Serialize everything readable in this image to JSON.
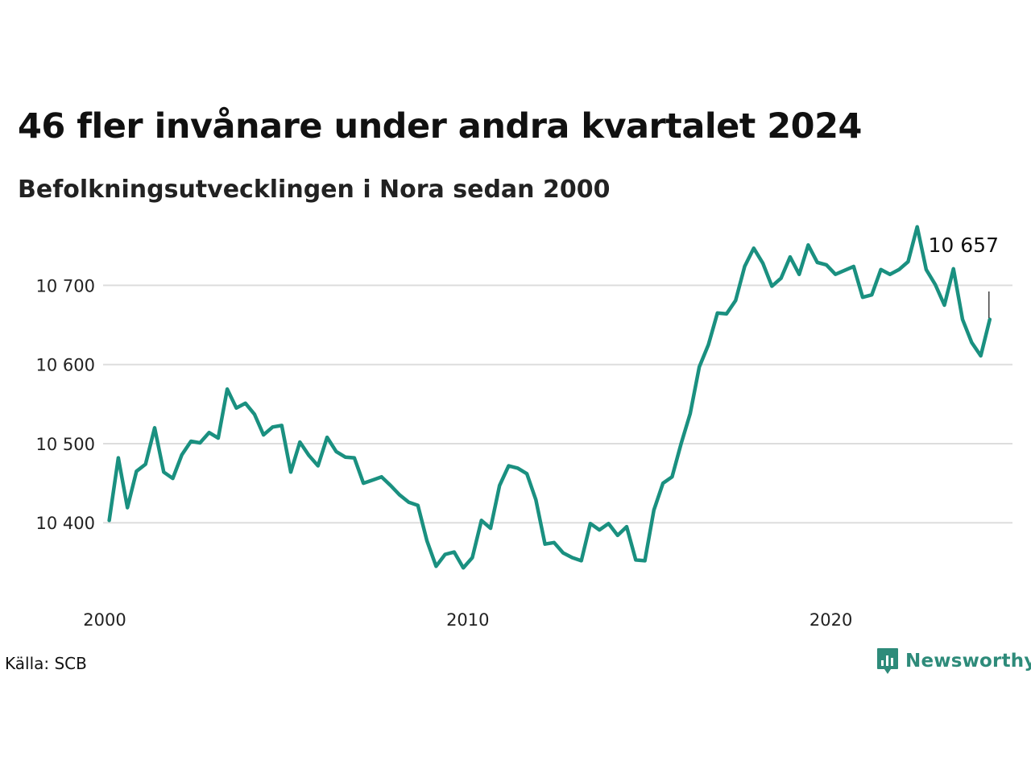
{
  "title": "46 fler invånare under andra kvartalet 2024",
  "subtitle": "Befolkningsutvecklingen i Nora sedan 2000",
  "source": "Källa: SCB",
  "brand": {
    "name": "Newsworthy",
    "logo_icon": "bar-chart-speech-bubble-icon",
    "color": "#2e8b7a"
  },
  "chart_data": {
    "type": "line",
    "title": "46 fler invånare under andra kvartalet 2024",
    "subtitle": "Befolkningsutvecklingen i Nora sedan 2000",
    "line_color": "#1a9080",
    "grid": true,
    "xlim": [
      2000,
      2025
    ],
    "ylim": [
      10330,
      10790
    ],
    "x_ticks": [
      {
        "value": 2000,
        "label": "2000"
      },
      {
        "value": 2010,
        "label": "2010"
      },
      {
        "value": 2020,
        "label": "2020"
      }
    ],
    "y_ticks": [
      {
        "value": 10400,
        "label": "10 400"
      },
      {
        "value": 10500,
        "label": "10 500"
      },
      {
        "value": 10600,
        "label": "10 600"
      },
      {
        "value": 10700,
        "label": "10 700"
      }
    ],
    "end_label": "10 657",
    "series": [
      {
        "x": [
          2000.125,
          2000.375,
          2000.625,
          2000.875,
          2001.125,
          2001.375,
          2001.625,
          2001.875,
          2002.125,
          2002.375,
          2002.625,
          2002.875,
          2003.125,
          2003.375,
          2003.625,
          2003.875,
          2004.125,
          2004.375,
          2004.625,
          2004.875,
          2005.125,
          2005.375,
          2005.625,
          2005.875,
          2006.125,
          2006.375,
          2006.625,
          2006.875,
          2007.125,
          2007.375,
          2007.625,
          2007.875,
          2008.125,
          2008.375,
          2008.625,
          2008.875,
          2009.125,
          2009.375,
          2009.625,
          2009.875,
          2010.125,
          2010.375,
          2010.625,
          2010.875,
          2011.125,
          2011.375,
          2011.625,
          2011.875,
          2012.125,
          2012.375,
          2012.625,
          2012.875,
          2013.125,
          2013.375,
          2013.625,
          2013.875,
          2014.125,
          2014.375,
          2014.625,
          2014.875,
          2015.125,
          2015.375,
          2015.625,
          2015.875,
          2016.125,
          2016.375,
          2016.625,
          2016.875,
          2017.125,
          2017.375,
          2017.625,
          2017.875,
          2018.125,
          2018.375,
          2018.625,
          2018.875,
          2019.125,
          2019.375,
          2019.625,
          2019.875,
          2020.125,
          2020.375,
          2020.625,
          2020.875,
          2021.125,
          2021.375,
          2021.625,
          2021.875,
          2022.125,
          2022.375,
          2022.625,
          2022.875,
          2023.125,
          2023.375,
          2023.625,
          2023.875,
          2024.125,
          2024.375
        ],
        "values": [
          10403,
          10482,
          10419,
          10465,
          10474,
          10520,
          10464,
          10456,
          10486,
          10503,
          10501,
          10514,
          10507,
          10569,
          10545,
          10551,
          10537,
          10511,
          10521,
          10523,
          10464,
          10502,
          10485,
          10472,
          10508,
          10490,
          10483,
          10482,
          10450,
          10454,
          10458,
          10447,
          10435,
          10426,
          10422,
          10377,
          10345,
          10360,
          10363,
          10343,
          10356,
          10403,
          10393,
          10447,
          10472,
          10469,
          10462,
          10429,
          10373,
          10375,
          10362,
          10356,
          10352,
          10399,
          10391,
          10399,
          10384,
          10395,
          10353,
          10352,
          10416,
          10450,
          10458,
          10500,
          10538,
          10597,
          10625,
          10665,
          10664,
          10681,
          10724,
          10747,
          10728,
          10699,
          10709,
          10736,
          10714,
          10751,
          10729,
          10726,
          10714,
          10719,
          10724,
          10685,
          10688,
          10720,
          10714,
          10720,
          10730,
          10774,
          10720,
          10701,
          10675,
          10721,
          10657,
          10628,
          10611,
          10657
        ]
      }
    ]
  }
}
